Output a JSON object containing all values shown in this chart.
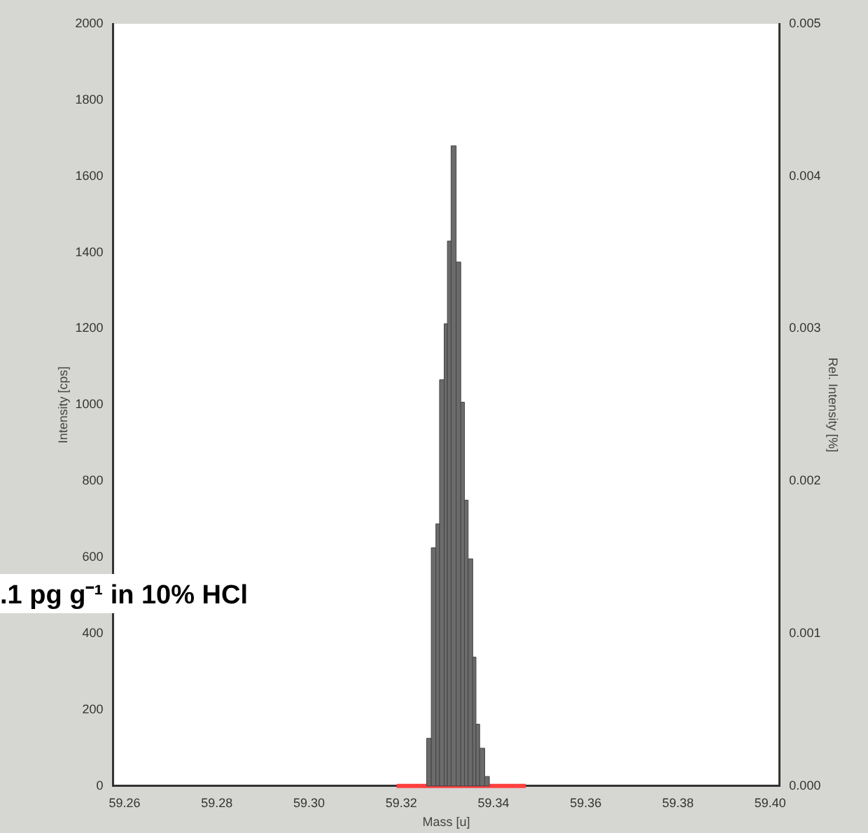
{
  "chart_data": {
    "type": "histogram",
    "xlabel": "Mass [u]",
    "ylabel": "Intensity [cps]",
    "y2label": "Rel. Intensity [%]",
    "bins": [
      59.3255,
      59.3265,
      59.3275,
      59.3283,
      59.3293,
      59.33,
      59.3308,
      59.3319,
      59.3329,
      59.3337,
      59.3345,
      59.3355,
      59.3362,
      59.337,
      59.3381,
      59.3391
    ],
    "values": [
      125,
      625,
      688,
      1066,
      1213,
      1430,
      1680,
      1375,
      1007,
      750,
      596,
      338,
      162,
      99,
      25
    ],
    "color": "#6b6b6b",
    "xlim": [
      59.2575,
      59.402
    ],
    "xticks": [
      59.26,
      59.28,
      {
        "value": 59.3,
        "label": "59.30"
      },
      59.32,
      59.34,
      59.36,
      59.38,
      {
        "value": 59.4,
        "label": "59.40"
      }
    ],
    "ylim": [
      0,
      2000
    ],
    "yticks": [
      0,
      200,
      400,
      600,
      800,
      1000,
      1200,
      1400,
      1600,
      1800,
      2000
    ],
    "y2lim": [
      0,
      0.005
    ],
    "y2ticks": [
      {
        "value": 0,
        "label": "0.000"
      },
      0.001,
      0.002,
      0.003,
      0.004,
      0.005
    ],
    "series": [
      {
        "type": "line",
        "x": [
          59.319,
          59.347
        ],
        "values": [
          0,
          0
        ],
        "color": "#ff4040"
      }
    ],
    "annotations": [
      ".1 pg g⁻¹ in 10% HCl"
    ],
    "grid": false,
    "legend": false
  }
}
